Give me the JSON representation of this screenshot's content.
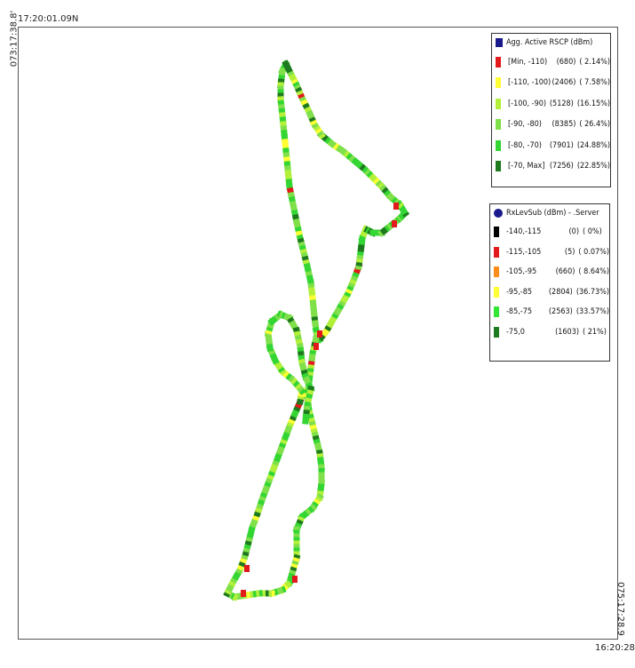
{
  "coords": {
    "top_left": "17:20:01.09N",
    "left_vertical": "073:17:38.8'",
    "right_vertical": "075:17:28.9",
    "bottom_right": "16:20:28"
  },
  "legend_rscp": {
    "title": "Agg. Active RSCP (dBm)",
    "title_color": "#1a1a8c",
    "items": [
      {
        "range": "[Min, -110)",
        "count": "(680)",
        "pct": "( 2.14%)",
        "color": "#e31a1c"
      },
      {
        "range": "[-110, -100)",
        "count": "(2406)",
        "pct": "( 7.58%)",
        "color": "#ffff33"
      },
      {
        "range": "[-100, -90)",
        "count": "(5128)",
        "pct": "(16.15%)",
        "color": "#b3f03a"
      },
      {
        "range": "[-90, -80)",
        "count": "(8385)",
        "pct": "( 26.4%)",
        "color": "#7fe04a"
      },
      {
        "range": "[-80, -70)",
        "count": "(7901)",
        "pct": "(24.88%)",
        "color": "#33d633"
      },
      {
        "range": "[-70, Max]",
        "count": "(7256)",
        "pct": "(22.85%)",
        "color": "#1e7a1e"
      }
    ]
  },
  "legend_rxlev": {
    "title": "RxLevSub (dBm) - .Server",
    "title_color": "#1a1a8c",
    "items": [
      {
        "range": "-140,-115",
        "count": "(0)",
        "pct": "(   0%)",
        "color": "#000000"
      },
      {
        "range": "-115,-105",
        "count": "(5)",
        "pct": "( 0.07%)",
        "color": "#e31a1c"
      },
      {
        "range": "-105,-95",
        "count": "(660)",
        "pct": "( 8.64%)",
        "color": "#ff8c1a"
      },
      {
        "range": "-95,-85",
        "count": "(2804)",
        "pct": "(36.73%)",
        "color": "#ffff33"
      },
      {
        "range": "-85,-75",
        "count": "(2563)",
        "pct": "(33.57%)",
        "color": "#33e633"
      },
      {
        "range": "-75,0",
        "count": "(1603)",
        "pct": "(   21%)",
        "color": "#1e7a1e"
      }
    ]
  },
  "route_colors": [
    "#33d633",
    "#7fe04a",
    "#b3f03a",
    "#1e7a1e",
    "#ffff33",
    "#e31a1c"
  ]
}
